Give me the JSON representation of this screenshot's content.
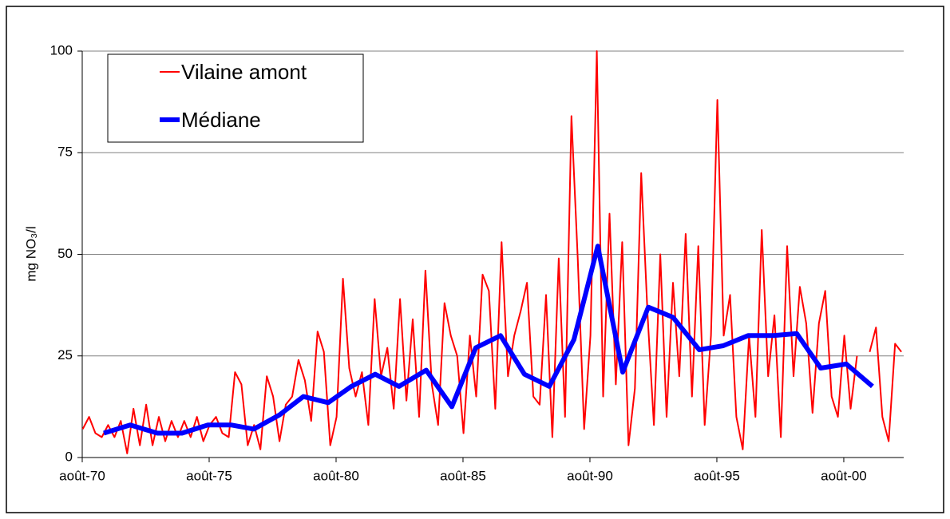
{
  "chart_data": {
    "type": "line",
    "ylabel": "mg NO₃/l",
    "xlim": [
      1970.58,
      2002.94
    ],
    "xticks": [
      {
        "value": 1970.58,
        "label": "août-70"
      },
      {
        "value": 1975.58,
        "label": "août-75"
      },
      {
        "value": 1980.58,
        "label": "août-80"
      },
      {
        "value": 1985.58,
        "label": "août-85"
      },
      {
        "value": 1990.58,
        "label": "août-90"
      },
      {
        "value": 1995.58,
        "label": "août-95"
      },
      {
        "value": 2000.58,
        "label": "août-00"
      }
    ],
    "ylim": [
      0,
      100
    ],
    "yticks": [
      0,
      25,
      50,
      75,
      100
    ],
    "grid": true,
    "legend": "upper left",
    "series": [
      {
        "name": "Vilaine amont",
        "color": "#ff0000",
        "width": 2,
        "x": [
          1970.6,
          1970.85,
          1971.1,
          1971.35,
          1971.6,
          1971.85,
          1972.1,
          1972.35,
          1972.6,
          1972.85,
          1973.1,
          1973.35,
          1973.6,
          1973.85,
          1974.1,
          1974.35,
          1974.6,
          1974.85,
          1975.1,
          1975.35,
          1975.6,
          1975.85,
          1976.1,
          1976.35,
          1976.6,
          1976.85,
          1977.1,
          1977.35,
          1977.6,
          1977.85,
          1978.1,
          1978.35,
          1978.6,
          1978.85,
          1979.1,
          1979.35,
          1979.6,
          1979.85,
          1980.1,
          1980.35,
          1980.6,
          1980.85,
          1981.1,
          1981.35,
          1981.6,
          1981.85,
          1982.1,
          1982.35,
          1982.6,
          1982.85,
          1983.1,
          1983.35,
          1983.6,
          1983.85,
          1984.1,
          1984.35,
          1984.6,
          1984.85,
          1985.1,
          1985.35,
          1985.6,
          1985.85,
          1986.1,
          1986.35,
          1986.6,
          1986.85,
          1987.1,
          1987.35,
          1987.6,
          1987.85,
          1988.1,
          1988.35,
          1988.6,
          1988.85,
          1989.1,
          1989.35,
          1989.6,
          1989.85,
          1990.1,
          1990.35,
          1990.6,
          1990.85,
          1991.1,
          1991.35,
          1991.6,
          1991.85,
          1992.1,
          1992.35,
          1992.6,
          1992.85,
          1993.1,
          1993.35,
          1993.6,
          1993.85,
          1994.1,
          1994.35,
          1994.6,
          1994.85,
          1995.1,
          1995.35,
          1995.6,
          1995.85,
          1996.1,
          1996.35,
          1996.6,
          1996.85,
          1997.1,
          1997.35,
          1997.6,
          1997.85,
          1998.1,
          1998.35,
          1998.6,
          1998.85,
          1999.1,
          1999.35,
          1999.6,
          1999.85,
          2000.1,
          2000.35,
          2000.6,
          2000.85,
          2001.1,
          2001.35,
          2001.6,
          2001.85,
          2002.1,
          2002.35,
          2002.6,
          2002.85
        ],
        "values": [
          7,
          10,
          6,
          5,
          8,
          5,
          9,
          1,
          12,
          3,
          13,
          3,
          10,
          4,
          9,
          5,
          9,
          5,
          10,
          4,
          8,
          10,
          6,
          5,
          21,
          18,
          3,
          8,
          2,
          20,
          15,
          4,
          13,
          15,
          24,
          19,
          9,
          31,
          26,
          3,
          10,
          44,
          22,
          15,
          21,
          8,
          39,
          20,
          27,
          12,
          39,
          14,
          34,
          10,
          46,
          18,
          8,
          38,
          30,
          25,
          6,
          30,
          15,
          45,
          41,
          12,
          53,
          20,
          30,
          36,
          43,
          15,
          13,
          40,
          5,
          49,
          10,
          84,
          49,
          7,
          30,
          100,
          15,
          60,
          18,
          53,
          3,
          17,
          70,
          35,
          8,
          50,
          10,
          43,
          20,
          55,
          15,
          52,
          8,
          30,
          88,
          30,
          40,
          10,
          2,
          30,
          10,
          56,
          20,
          35,
          5,
          52,
          20,
          42,
          33,
          11,
          33,
          41,
          15,
          10,
          30,
          12,
          25,
          null,
          26,
          32,
          10,
          4,
          28,
          26
        ]
      },
      {
        "name": "Médiane",
        "color": "#0000ff",
        "width": 6,
        "x": [
          1971.43,
          1972.47,
          1973.54,
          1974.51,
          1975.52,
          1976.46,
          1977.34,
          1978.35,
          1979.29,
          1980.27,
          1981.18,
          1982.12,
          1983.06,
          1984.13,
          1985.14,
          1986.08,
          1987.06,
          1988.0,
          1988.98,
          1989.95,
          1990.89,
          1991.87,
          1992.88,
          1993.85,
          1994.89,
          1995.83,
          1996.81,
          1997.81,
          1998.73,
          1999.67,
          2000.68,
          2001.71
        ],
        "values": [
          6,
          8,
          6,
          6,
          8,
          8,
          7,
          10.5,
          15,
          13.5,
          17.5,
          20.5,
          17.5,
          21.5,
          12.5,
          27,
          30,
          20.5,
          17.5,
          29,
          52,
          21,
          37,
          34.5,
          26.5,
          27.5,
          30,
          30,
          30.5,
          22,
          23,
          17.5
        ]
      }
    ]
  }
}
